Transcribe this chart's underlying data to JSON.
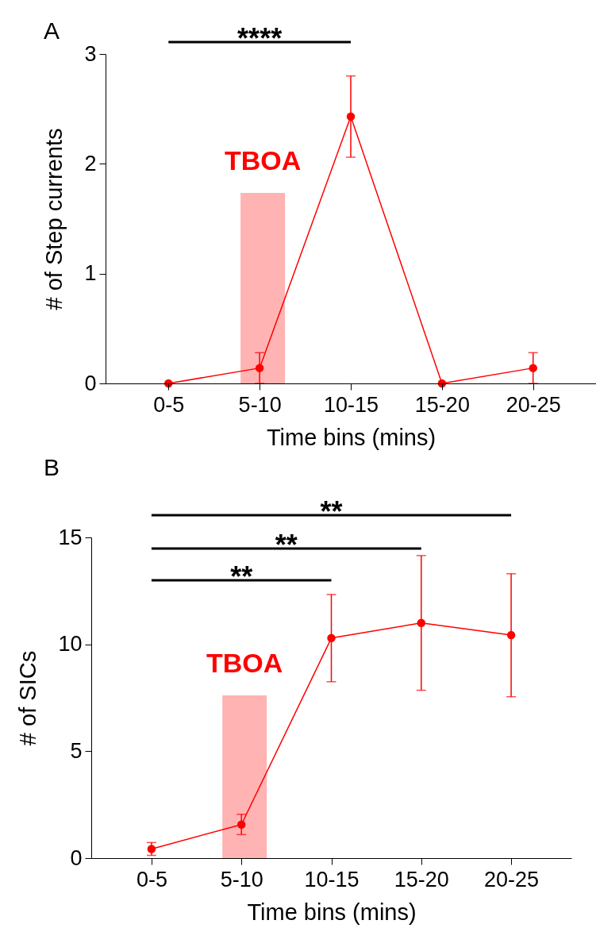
{
  "chart_data": [
    {
      "type": "line",
      "xlabel": "Time bins (mins)",
      "ylabel": "# of Step currents",
      "categories": [
        "0-5",
        "5-10",
        "10-15",
        "15-20",
        "20-25"
      ],
      "series": [
        {
          "color": "#ff0000",
          "values": [
            0,
            0.14,
            2.43,
            0,
            0.14
          ],
          "errors": [
            null,
            [
              0,
              0.28
            ],
            [
              2.06,
              2.8
            ],
            null,
            [
              0,
              0.28
            ]
          ]
        }
      ],
      "ylim": [
        0,
        3
      ],
      "yticks": [
        0,
        1,
        2,
        3
      ],
      "marker": "circle",
      "grid": false,
      "bands": [
        {
          "axis": "x",
          "from": "5-10",
          "to": "5-10",
          "label": "TBOA",
          "color": "#ffb3b3"
        }
      ],
      "annotations": [
        "A",
        "****"
      ]
    },
    {
      "type": "line",
      "xlabel": "Time bins (mins)",
      "ylabel": "# of SICs",
      "categories": [
        "0-5",
        "5-10",
        "10-15",
        "15-20",
        "20-25"
      ],
      "series": [
        {
          "color": "#ff0000",
          "values": [
            0.43,
            1.57,
            10.29,
            11.0,
            10.43
          ],
          "errors": [
            [
              0.13,
              0.73
            ],
            [
              1.1,
              2.05
            ],
            [
              8.25,
              12.33
            ],
            [
              7.85,
              14.15
            ],
            [
              7.55,
              13.3
            ]
          ]
        }
      ],
      "ylim": [
        0,
        15
      ],
      "yticks": [
        0,
        5,
        10,
        15
      ],
      "marker": "circle",
      "grid": false,
      "bands": [
        {
          "axis": "x",
          "from": "5-10",
          "to": "5-10",
          "label": "TBOA",
          "color": "#ffb3b3"
        }
      ],
      "annotations": [
        "B",
        "**",
        "**",
        "**"
      ]
    }
  ]
}
